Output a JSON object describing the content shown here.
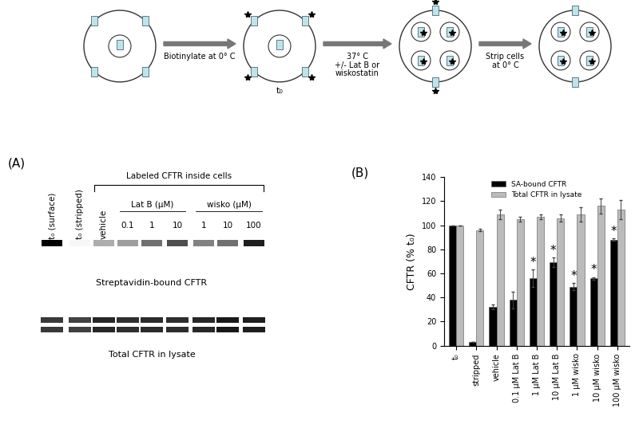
{
  "diagram": {
    "steps": [
      "Biotinylate at 0° C",
      "37° C\n+/- Lat B or\nwiskostatin",
      "Strip cells\nat 0° C"
    ],
    "t0_label": "t₀"
  },
  "panel_A": {
    "panel_label": "(A)",
    "group_title": "Labeled CFTR inside cells",
    "lanes_single": [
      "t₀ (surface)",
      "t₀ (stripped)",
      "vehicle"
    ],
    "groups": [
      {
        "label": "Lat B (μM)",
        "lanes": [
          "0.1",
          "1",
          "10"
        ]
      },
      {
        "label": "wisko (μM)",
        "lanes": [
          "1",
          "10",
          "100"
        ]
      }
    ],
    "blots": [
      "Streptavidin-bound CFTR",
      "Total CFTR in lysate"
    ]
  },
  "chart_data": {
    "type": "bar",
    "panel_label": "(B)",
    "ylabel": "CFTR (% t₀)",
    "categories": [
      "t₀",
      "stripped",
      "vehicle",
      "0.1 μM Lat B",
      "1 μM Lat B",
      "10 μM Lat B",
      "1 μM wisko",
      "10 μM wisko",
      "100 μM wisko"
    ],
    "series": [
      {
        "name": "SA-bound CFTR",
        "color": "#000000",
        "values": [
          100,
          3,
          32,
          38,
          56,
          69,
          49,
          56,
          88
        ],
        "errors": [
          0,
          0,
          2,
          7,
          7,
          4,
          3,
          1,
          1
        ]
      },
      {
        "name": "Total CFTR in lysate",
        "color": "#bbbbbb",
        "values": [
          100,
          96,
          109,
          105,
          107,
          106,
          109,
          116,
          113
        ],
        "errors": [
          0,
          1,
          4,
          2,
          2,
          3,
          6,
          6,
          8
        ]
      }
    ],
    "significant": [
      "1 μM Lat B",
      "10 μM Lat B",
      "1 μM wisko",
      "10 μM wisko",
      "100 μM wisko"
    ],
    "significance_label": "*",
    "ylim": [
      0,
      140
    ],
    "yticks": [
      0,
      20,
      40,
      60,
      80,
      100,
      120,
      140
    ],
    "legend": "upper center"
  }
}
